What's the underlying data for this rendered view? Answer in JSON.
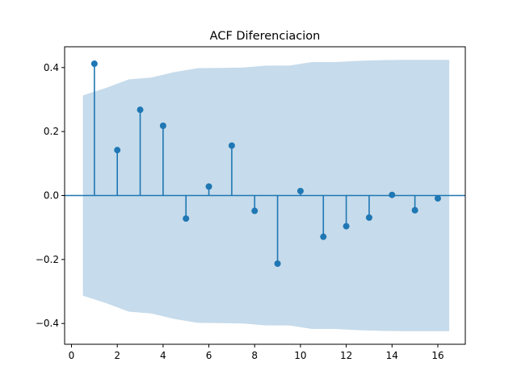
{
  "chart_data": {
    "type": "stem",
    "title": "ACF Diferenciacion",
    "xlabel": "",
    "ylabel": "",
    "xlim": [
      -0.3,
      17.2
    ],
    "ylim": [
      -0.465,
      0.465
    ],
    "x_ticks": [
      0,
      2,
      4,
      6,
      8,
      10,
      12,
      14,
      16
    ],
    "y_ticks": [
      -0.4,
      -0.2,
      0.0,
      0.2,
      0.4
    ],
    "y_tick_labels": [
      "−0.4",
      "−0.2",
      "0.0",
      "0.2",
      "0.4"
    ],
    "grid": false,
    "series": [
      {
        "x": [
          1,
          2,
          3,
          4,
          5,
          6,
          7,
          8,
          9,
          10,
          11,
          12,
          13,
          14,
          15,
          16
        ],
        "values": [
          0.412,
          0.142,
          0.268,
          0.218,
          -0.072,
          0.028,
          0.156,
          -0.048,
          -0.213,
          0.014,
          -0.129,
          -0.096,
          -0.069,
          0.002,
          -0.046,
          -0.009
        ]
      }
    ],
    "confidence_band": {
      "x": [
        0.5,
        1.5,
        2.5,
        3.5,
        4.5,
        5.5,
        6.5,
        7.5,
        8.5,
        9.5,
        10.5,
        11.5,
        12.5,
        13.5,
        14.5,
        15.5,
        16.5
      ],
      "upper": [
        0.313,
        0.336,
        0.363,
        0.369,
        0.386,
        0.398,
        0.399,
        0.4,
        0.406,
        0.406,
        0.417,
        0.417,
        0.421,
        0.423,
        0.424,
        0.424,
        0.424
      ]
    },
    "colors": {
      "stem": "#1f77b4",
      "band": "#c6dbeb",
      "axis": "#000000"
    }
  }
}
